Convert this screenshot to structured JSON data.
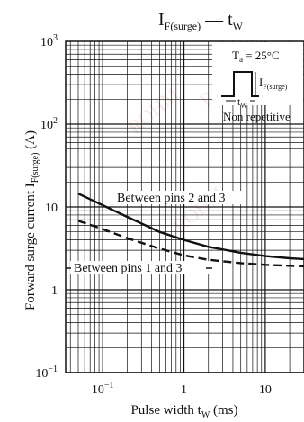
{
  "chart_data": {
    "type": "line",
    "title": "I",
    "title_sub": "F(surge)",
    "title_sep": " — t",
    "title_sub2": "W",
    "xlabel": "Pulse width  t",
    "xlabel_sub": "W",
    "xlabel_unit": " (ms)",
    "ylabel": "Forward surge current  I",
    "ylabel_sub": "F(surge)",
    "ylabel_unit": " (A)",
    "x_scale": "log",
    "y_scale": "log",
    "xlim": [
      0.035,
      30
    ],
    "ylim": [
      0.1,
      1000
    ],
    "grid": true,
    "x_ticks": [
      {
        "value": 0.1,
        "label": "10",
        "sup": "−1"
      },
      {
        "value": 1,
        "label": "1",
        "sup": ""
      },
      {
        "value": 10,
        "label": "10",
        "sup": ""
      }
    ],
    "y_ticks": [
      {
        "value": 1000,
        "label": "10",
        "sup": "3"
      },
      {
        "value": 100,
        "label": "10",
        "sup": "2"
      },
      {
        "value": 10,
        "label": "10",
        "sup": ""
      },
      {
        "value": 1,
        "label": "1",
        "sup": ""
      },
      {
        "value": 0.1,
        "label": "10",
        "sup": "−1"
      }
    ],
    "series": [
      {
        "name": "Between pins 2 and 3",
        "style": "solid",
        "x": [
          0.05,
          0.1,
          0.2,
          0.5,
          1,
          2,
          5,
          10,
          20,
          30
        ],
        "y": [
          14.5,
          10.5,
          7.6,
          5.0,
          4.0,
          3.3,
          2.8,
          2.55,
          2.4,
          2.35
        ]
      },
      {
        "name": "Between pins 1 and 3",
        "style": "dashed",
        "x": [
          0.05,
          0.1,
          0.2,
          0.5,
          1,
          2,
          5,
          10,
          20,
          30
        ],
        "y": [
          6.8,
          5.4,
          4.2,
          3.15,
          2.6,
          2.3,
          2.1,
          2.0,
          1.95,
          1.92
        ]
      }
    ],
    "inset": {
      "condition": "T",
      "condition_sub": "a",
      "condition_value": " = 25°C",
      "pulse_label": "I",
      "pulse_label_sub": "F(surge)",
      "width_label": "t",
      "width_label_sub": "W",
      "note": "Non repetitive"
    }
  },
  "colors": {
    "line": "#111111",
    "grid": "#111111",
    "watermark": "#e05050"
  }
}
